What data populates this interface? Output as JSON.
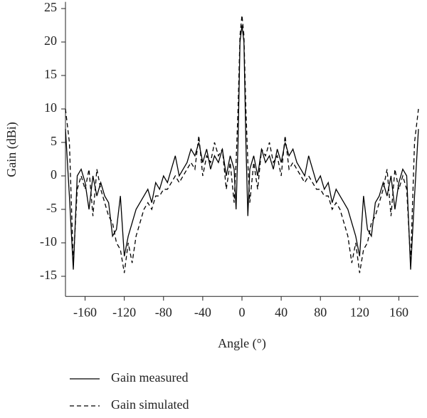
{
  "chart_data": {
    "type": "line",
    "xlabel": "Angle (°)",
    "ylabel": "Gain (dBi)",
    "x": [
      -180,
      -176,
      -172,
      -168,
      -164,
      -160,
      -156,
      -152,
      -148,
      -144,
      -140,
      -136,
      -132,
      -128,
      -124,
      -120,
      -116,
      -112,
      -108,
      -104,
      -100,
      -96,
      -92,
      -88,
      -84,
      -80,
      -76,
      -72,
      -68,
      -64,
      -60,
      -56,
      -52,
      -48,
      -44,
      -40,
      -36,
      -32,
      -28,
      -24,
      -20,
      -16,
      -12,
      -8,
      -6,
      -4,
      -2,
      0,
      2,
      4,
      6,
      8,
      12,
      16,
      20,
      24,
      28,
      32,
      36,
      40,
      44,
      48,
      52,
      56,
      60,
      64,
      68,
      72,
      76,
      80,
      84,
      88,
      92,
      96,
      100,
      104,
      108,
      112,
      116,
      120,
      124,
      128,
      132,
      136,
      140,
      144,
      148,
      152,
      156,
      160,
      164,
      168,
      172,
      176,
      180
    ],
    "series": [
      {
        "name": "Gain measured",
        "color": "#000000",
        "linestyle": "solid",
        "values": [
          7,
          -3,
          -14,
          0,
          1,
          -1,
          -5,
          0,
          -3,
          -1,
          -3,
          -4,
          -9,
          -8,
          -3,
          -12,
          -9,
          -7,
          -5,
          -4,
          -3,
          -2,
          -4,
          -1,
          -2,
          0,
          -1,
          1,
          3,
          0,
          1,
          2,
          4,
          3,
          5,
          2,
          4,
          1,
          3,
          2,
          4,
          0,
          3,
          1,
          -5,
          5,
          20,
          22.5,
          20,
          5,
          -6,
          1,
          3,
          0,
          4,
          2,
          3,
          1,
          4,
          2,
          5,
          3,
          4,
          2,
          1,
          0,
          3,
          1,
          -1,
          0,
          -2,
          -1,
          -4,
          -2,
          -3,
          -4,
          -5,
          -7,
          -9,
          -12,
          -3,
          -8,
          -9,
          -4,
          -3,
          -1,
          -3,
          0,
          -5,
          -1,
          1,
          0,
          -14,
          -3,
          7
        ]
      },
      {
        "name": "Gain simulated",
        "color": "#000000",
        "linestyle": "dashed",
        "values": [
          10,
          5,
          -13,
          -2,
          0,
          -2,
          1,
          -6,
          1,
          -2,
          -4,
          -6,
          -7,
          -10,
          -11,
          -14.5,
          -10,
          -13,
          -9,
          -7,
          -5,
          -4,
          -5,
          -3,
          -3,
          -2,
          -2,
          -1,
          0,
          -1,
          0,
          1,
          2,
          1,
          6,
          0,
          3,
          2,
          5,
          3,
          4,
          -2,
          2,
          -4,
          2,
          10,
          21,
          24,
          21,
          10,
          2,
          -4,
          2,
          -2,
          4,
          3,
          5,
          2,
          3,
          0,
          6,
          1,
          2,
          1,
          0,
          -1,
          0,
          -1,
          -2,
          -2,
          -3,
          -3,
          -5,
          -4,
          -5,
          -7,
          -9,
          -13,
          -10,
          -14.5,
          -11,
          -10,
          -7,
          -6,
          -4,
          -2,
          1,
          -6,
          1,
          -2,
          0,
          -2,
          -13,
          5,
          10
        ]
      }
    ],
    "xlim": [
      -180,
      180
    ],
    "ylim": [
      -18,
      26
    ],
    "xticks": [
      -160,
      -120,
      -80,
      -40,
      0,
      40,
      80,
      120,
      160
    ],
    "yticks": [
      -15,
      -10,
      -5,
      0,
      5,
      10,
      15,
      20,
      25
    ],
    "grid": false
  }
}
